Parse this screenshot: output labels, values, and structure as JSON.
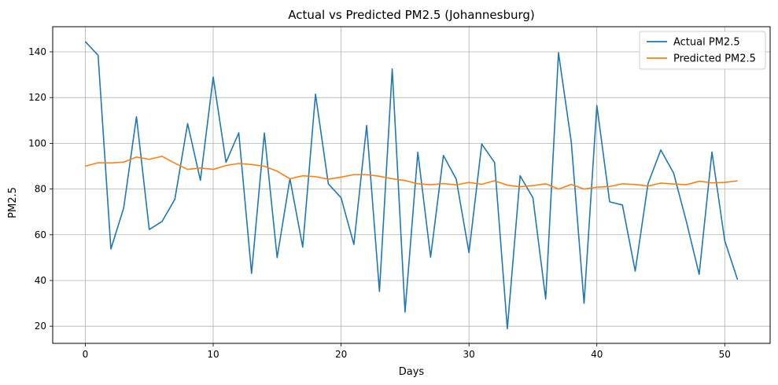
{
  "chart_data": {
    "type": "line",
    "title": "Actual vs Predicted PM2.5 (Johannesburg)",
    "xlabel": "Days",
    "ylabel": "PM2.5",
    "xlim": [
      -2.55,
      53.55
    ],
    "ylim": [
      12.5,
      151
    ],
    "xticks": [
      0,
      10,
      20,
      30,
      40,
      50
    ],
    "yticks": [
      20,
      40,
      60,
      80,
      100,
      120,
      140
    ],
    "grid": true,
    "legend_position": "top-right",
    "series": [
      {
        "name": "Actual PM2.5",
        "color": "#1f77b4",
        "values": [
          144.5,
          138.5,
          53.8,
          71.7,
          111.6,
          62.3,
          65.8,
          75.5,
          108.6,
          83.8,
          129.0,
          91.7,
          104.6,
          43.1,
          104.5,
          50.0,
          84.6,
          54.6,
          121.5,
          82.3,
          76.2,
          55.8,
          107.8,
          35.2,
          132.5,
          26.2,
          96.1,
          50.2,
          94.7,
          84.4,
          52.2,
          99.7,
          91.6,
          18.9,
          85.8,
          76.2,
          31.9,
          139.6,
          100.6,
          30.0,
          116.5,
          74.4,
          73.0,
          44.1,
          82.3,
          97.1,
          87.0,
          65.8,
          42.7,
          96.2,
          57.4,
          40.4
        ]
      },
      {
        "name": "Predicted PM2.5",
        "color": "#ff7f0e",
        "values": [
          90.0,
          91.5,
          91.4,
          91.8,
          94.0,
          93.0,
          94.3,
          91.3,
          88.6,
          89.2,
          88.6,
          90.3,
          91.2,
          90.7,
          90.0,
          87.8,
          84.5,
          85.8,
          85.4,
          84.3,
          85.2,
          86.3,
          86.3,
          85.6,
          84.5,
          83.7,
          82.3,
          81.9,
          82.4,
          81.8,
          82.9,
          82.1,
          83.6,
          81.7,
          81.0,
          81.5,
          82.3,
          80.0,
          82.0,
          80.0,
          80.8,
          81.1,
          82.3,
          82.0,
          81.3,
          82.6,
          82.2,
          81.9,
          83.4,
          82.7,
          82.9,
          83.6
        ]
      }
    ]
  }
}
